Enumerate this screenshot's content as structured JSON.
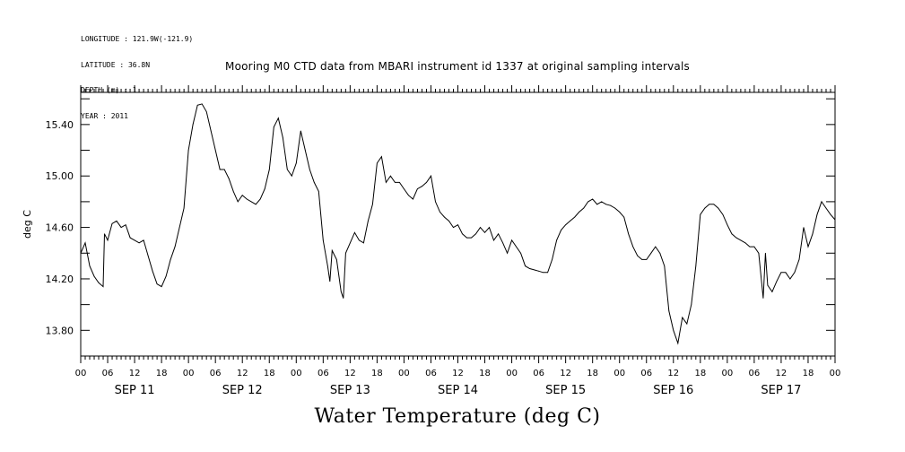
{
  "meta_lines": [
    "LONGITUDE : 121.9W(-121.9)",
    "LATITUDE : 36.8N",
    "DEPTH (m) : 1",
    "YEAR : 2011"
  ],
  "chart_data": {
    "type": "line",
    "title": "Mooring M0 CTD data from MBARI instrument id 1337 at original sampling intervals",
    "xlabel": "Water Temperature (deg C)",
    "ylabel": "deg C",
    "ylim": [
      13.6,
      15.65
    ],
    "y_ticks": [
      "13.80",
      "14.20",
      "14.60",
      "15.00",
      "15.40"
    ],
    "x_tick_hours": [
      "00",
      "06",
      "12",
      "18",
      "00",
      "06",
      "12",
      "18",
      "00",
      "06",
      "12",
      "18",
      "00",
      "06",
      "12",
      "18",
      "00",
      "06",
      "12",
      "18",
      "00",
      "06",
      "12",
      "18",
      "00",
      "06",
      "12",
      "18",
      "00"
    ],
    "x_day_labels": [
      "SEP 11",
      "SEP 12",
      "SEP 13",
      "SEP 14",
      "SEP 15",
      "SEP 16",
      "SEP 17"
    ],
    "x_unit": "hours from 2011-09-11 00:00",
    "xlim": [
      0,
      168
    ],
    "grid": false,
    "series": [
      {
        "name": "",
        "points": [
          [
            0,
            14.4
          ],
          [
            1,
            14.48
          ],
          [
            2,
            14.3
          ],
          [
            3,
            14.22
          ],
          [
            4,
            14.17
          ],
          [
            5,
            14.14
          ],
          [
            5.3,
            14.55
          ],
          [
            6,
            14.5
          ],
          [
            7,
            14.63
          ],
          [
            8,
            14.65
          ],
          [
            9,
            14.6
          ],
          [
            10,
            14.62
          ],
          [
            11,
            14.52
          ],
          [
            12,
            14.5
          ],
          [
            13,
            14.48
          ],
          [
            14,
            14.5
          ],
          [
            15,
            14.38
          ],
          [
            16,
            14.26
          ],
          [
            17,
            14.16
          ],
          [
            18,
            14.14
          ],
          [
            19,
            14.22
          ],
          [
            20,
            14.35
          ],
          [
            21,
            14.45
          ],
          [
            22,
            14.6
          ],
          [
            23,
            14.75
          ],
          [
            24,
            15.2
          ],
          [
            25,
            15.4
          ],
          [
            26,
            15.55
          ],
          [
            27,
            15.56
          ],
          [
            28,
            15.5
          ],
          [
            29,
            15.35
          ],
          [
            30,
            15.2
          ],
          [
            31,
            15.05
          ],
          [
            32,
            15.05
          ],
          [
            33,
            14.98
          ],
          [
            34,
            14.88
          ],
          [
            35,
            14.8
          ],
          [
            36,
            14.85
          ],
          [
            37,
            14.82
          ],
          [
            38,
            14.8
          ],
          [
            39,
            14.78
          ],
          [
            40,
            14.82
          ],
          [
            41,
            14.9
          ],
          [
            42,
            15.05
          ],
          [
            43,
            15.38
          ],
          [
            44,
            15.45
          ],
          [
            45,
            15.3
          ],
          [
            46,
            15.05
          ],
          [
            47,
            15.0
          ],
          [
            48,
            15.1
          ],
          [
            49,
            15.35
          ],
          [
            50,
            15.2
          ],
          [
            51,
            15.05
          ],
          [
            52,
            14.95
          ],
          [
            53,
            14.88
          ],
          [
            54,
            14.5
          ],
          [
            55,
            14.3
          ],
          [
            55.5,
            14.18
          ],
          [
            56,
            14.42
          ],
          [
            57,
            14.35
          ],
          [
            58,
            14.1
          ],
          [
            58.5,
            14.05
          ],
          [
            59,
            14.4
          ],
          [
            60,
            14.48
          ],
          [
            61,
            14.56
          ],
          [
            62,
            14.5
          ],
          [
            63,
            14.48
          ],
          [
            64,
            14.65
          ],
          [
            65,
            14.78
          ],
          [
            66,
            15.1
          ],
          [
            67,
            15.15
          ],
          [
            68,
            14.95
          ],
          [
            69,
            15.0
          ],
          [
            70,
            14.95
          ],
          [
            71,
            14.95
          ],
          [
            72,
            14.9
          ],
          [
            73,
            14.85
          ],
          [
            74,
            14.82
          ],
          [
            75,
            14.9
          ],
          [
            76,
            14.92
          ],
          [
            77,
            14.95
          ],
          [
            78,
            15.0
          ],
          [
            79,
            14.8
          ],
          [
            80,
            14.72
          ],
          [
            81,
            14.68
          ],
          [
            82,
            14.65
          ],
          [
            83,
            14.6
          ],
          [
            84,
            14.62
          ],
          [
            85,
            14.55
          ],
          [
            86,
            14.52
          ],
          [
            87,
            14.52
          ],
          [
            88,
            14.55
          ],
          [
            89,
            14.6
          ],
          [
            90,
            14.56
          ],
          [
            91,
            14.6
          ],
          [
            92,
            14.5
          ],
          [
            93,
            14.55
          ],
          [
            94,
            14.48
          ],
          [
            95,
            14.4
          ],
          [
            96,
            14.5
          ],
          [
            97,
            14.45
          ],
          [
            98,
            14.4
          ],
          [
            99,
            14.3
          ],
          [
            100,
            14.28
          ],
          [
            101,
            14.27
          ],
          [
            102,
            14.26
          ],
          [
            103,
            14.25
          ],
          [
            104,
            14.25
          ],
          [
            105,
            14.35
          ],
          [
            106,
            14.5
          ],
          [
            107,
            14.58
          ],
          [
            108,
            14.62
          ],
          [
            109,
            14.65
          ],
          [
            110,
            14.68
          ],
          [
            111,
            14.72
          ],
          [
            112,
            14.75
          ],
          [
            113,
            14.8
          ],
          [
            114,
            14.82
          ],
          [
            115,
            14.78
          ],
          [
            116,
            14.8
          ],
          [
            117,
            14.78
          ],
          [
            118,
            14.77
          ],
          [
            119,
            14.75
          ],
          [
            120,
            14.72
          ],
          [
            121,
            14.68
          ],
          [
            122,
            14.55
          ],
          [
            123,
            14.45
          ],
          [
            124,
            14.38
          ],
          [
            125,
            14.35
          ],
          [
            126,
            14.35
          ],
          [
            127,
            14.4
          ],
          [
            128,
            14.45
          ],
          [
            129,
            14.4
          ],
          [
            130,
            14.3
          ],
          [
            131,
            13.95
          ],
          [
            132,
            13.8
          ],
          [
            133,
            13.7
          ],
          [
            134,
            13.9
          ],
          [
            135,
            13.85
          ],
          [
            136,
            14.0
          ],
          [
            137,
            14.3
          ],
          [
            138,
            14.7
          ],
          [
            139,
            14.75
          ],
          [
            140,
            14.78
          ],
          [
            141,
            14.78
          ],
          [
            142,
            14.75
          ],
          [
            143,
            14.7
          ],
          [
            144,
            14.62
          ],
          [
            145,
            14.55
          ],
          [
            146,
            14.52
          ],
          [
            147,
            14.5
          ],
          [
            148,
            14.48
          ],
          [
            149,
            14.45
          ],
          [
            150,
            14.45
          ],
          [
            151,
            14.4
          ],
          [
            152,
            14.05
          ],
          [
            152.5,
            14.4
          ],
          [
            153,
            14.15
          ],
          [
            154,
            14.1
          ],
          [
            155,
            14.18
          ],
          [
            156,
            14.25
          ],
          [
            157,
            14.25
          ],
          [
            158,
            14.2
          ],
          [
            159,
            14.25
          ],
          [
            160,
            14.35
          ],
          [
            161,
            14.6
          ],
          [
            162,
            14.45
          ],
          [
            163,
            14.55
          ],
          [
            164,
            14.7
          ],
          [
            165,
            14.8
          ],
          [
            166,
            14.75
          ],
          [
            167,
            14.7
          ],
          [
            168,
            14.66
          ]
        ]
      }
    ]
  }
}
